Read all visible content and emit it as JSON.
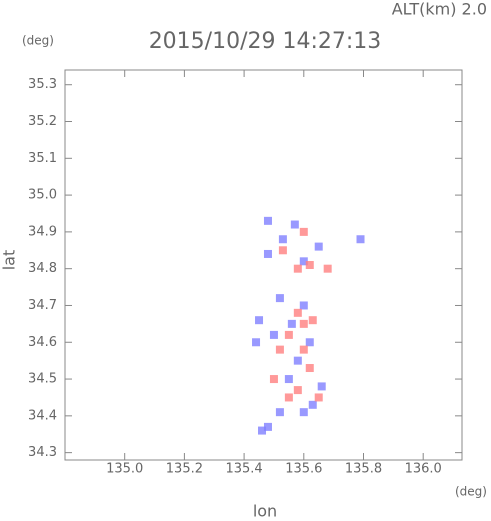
{
  "chart_data": {
    "type": "scatter",
    "header": "ALT(km) 2.0",
    "title": "2015/10/29 14:27:13",
    "y_unit": "(deg)",
    "x_unit": "(deg)",
    "ylabel": "lat",
    "xlabel": "lon",
    "xlim": [
      134.8,
      136.13
    ],
    "ylim": [
      34.28,
      35.34
    ],
    "xticks": [
      {
        "value": 135,
        "label": "135.0"
      },
      135.2,
      135.4,
      135.6,
      135.8,
      {
        "value": 136,
        "label": "136.0"
      }
    ],
    "yticks": [
      34.3,
      34.4,
      34.5,
      34.6,
      34.7,
      34.8,
      34.9,
      {
        "value": 35,
        "label": "35.0"
      },
      35.1,
      35.2,
      35.3
    ],
    "series": [
      {
        "color": "#7f7fff",
        "x": [
          135.48,
          135.46,
          135.52,
          135.6,
          135.63,
          135.66,
          135.55,
          135.58,
          135.45,
          135.44,
          135.5,
          135.56,
          135.62,
          135.6,
          135.52,
          135.48,
          135.65,
          135.6,
          135.79,
          135.48,
          135.53,
          135.57
        ],
        "y": [
          34.37,
          34.36,
          34.41,
          34.41,
          34.43,
          34.48,
          34.5,
          34.55,
          34.66,
          34.6,
          34.62,
          34.65,
          34.6,
          34.7,
          34.72,
          34.84,
          34.86,
          34.82,
          34.88,
          34.93,
          34.88,
          34.92
        ]
      },
      {
        "color": "#ff8080",
        "x": [
          135.55,
          135.58,
          135.62,
          135.6,
          135.55,
          135.6,
          135.63,
          135.52,
          135.58,
          135.58,
          135.62,
          135.68,
          135.53,
          135.6,
          135.5,
          135.65
        ],
        "y": [
          34.45,
          34.47,
          34.53,
          34.58,
          34.62,
          34.65,
          34.66,
          34.58,
          34.68,
          34.8,
          34.81,
          34.8,
          34.85,
          34.9,
          34.5,
          34.45
        ]
      }
    ]
  }
}
